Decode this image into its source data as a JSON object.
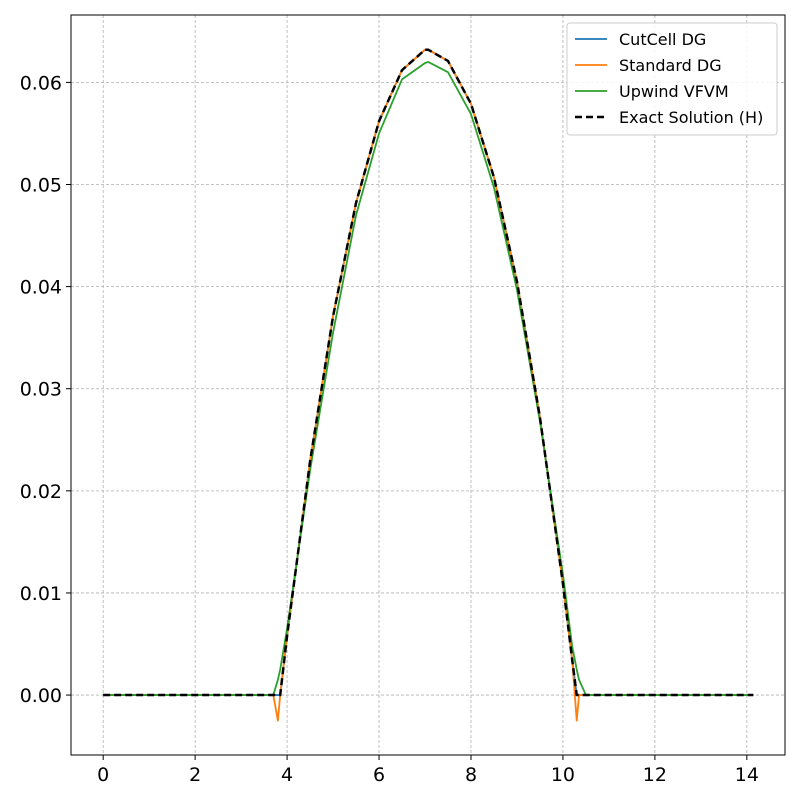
{
  "chart_data": {
    "type": "line",
    "x": [
      0,
      1,
      2,
      3,
      3.5,
      3.7,
      3.8,
      3.85,
      4.0,
      4.5,
      5,
      5.5,
      6,
      6.5,
      7,
      7.07,
      7.5,
      8,
      8.5,
      9,
      9.5,
      10,
      10.2,
      10.3,
      10.35,
      10.5,
      11,
      12,
      13,
      14.14
    ],
    "series": [
      {
        "name": "CutCell DG",
        "color": "#1f77b4",
        "linestyle": "solid",
        "values": [
          0,
          0,
          0,
          0,
          0,
          0,
          0,
          0,
          0.0058,
          0.0229,
          0.0371,
          0.0482,
          0.0562,
          0.0612,
          0.0632,
          0.0632,
          0.0621,
          0.0579,
          0.0507,
          0.0405,
          0.0272,
          0.0109,
          0.0035,
          0,
          0,
          0,
          0,
          0,
          0,
          0
        ]
      },
      {
        "name": "Standard DG",
        "color": "#ff7f0e",
        "linestyle": "solid",
        "values": [
          0,
          0,
          0,
          0,
          0,
          0,
          -0.0025,
          0,
          0.0058,
          0.0229,
          0.0371,
          0.0482,
          0.0562,
          0.0612,
          0.0632,
          0.0632,
          0.0621,
          0.0579,
          0.0507,
          0.0405,
          0.0272,
          0.0109,
          0.0035,
          -0.0025,
          0,
          0,
          0,
          0,
          0,
          0
        ]
      },
      {
        "name": "Upwind VFVM",
        "color": "#2ca02c",
        "linestyle": "solid",
        "values": [
          0,
          0,
          0,
          0,
          0,
          0,
          0.0015,
          0.0025,
          0.0065,
          0.022,
          0.0355,
          0.047,
          0.055,
          0.0603,
          0.0619,
          0.062,
          0.061,
          0.0569,
          0.0497,
          0.0397,
          0.0268,
          0.0118,
          0.0048,
          0.0025,
          0.0015,
          0,
          0,
          0,
          0,
          0
        ]
      },
      {
        "name": "Exact Solution (H)",
        "color": "#000000",
        "linestyle": "dashed",
        "values": [
          0,
          0,
          0,
          0,
          0,
          0,
          0,
          0,
          0.0058,
          0.0229,
          0.0371,
          0.0482,
          0.0562,
          0.0612,
          0.0632,
          0.0632,
          0.0621,
          0.0579,
          0.0507,
          0.0405,
          0.0272,
          0.0109,
          0.0035,
          0,
          0,
          0,
          0,
          0,
          0,
          0
        ]
      }
    ],
    "xlim": [
      -0.7,
      14.83
    ],
    "ylim": [
      -0.00587,
      0.0666
    ],
    "xticks": [
      0,
      2,
      4,
      6,
      8,
      10,
      12,
      14
    ],
    "yticks": [
      {
        "value": 0,
        "label": "0.00"
      },
      {
        "value": 0.01,
        "label": "0.01"
      },
      {
        "value": 0.02,
        "label": "0.02"
      },
      {
        "value": 0.03,
        "label": "0.03"
      },
      {
        "value": 0.04,
        "label": "0.04"
      },
      {
        "value": 0.05,
        "label": "0.05"
      },
      {
        "value": 0.06,
        "label": "0.06"
      }
    ],
    "grid": true,
    "legend": "upper right"
  }
}
